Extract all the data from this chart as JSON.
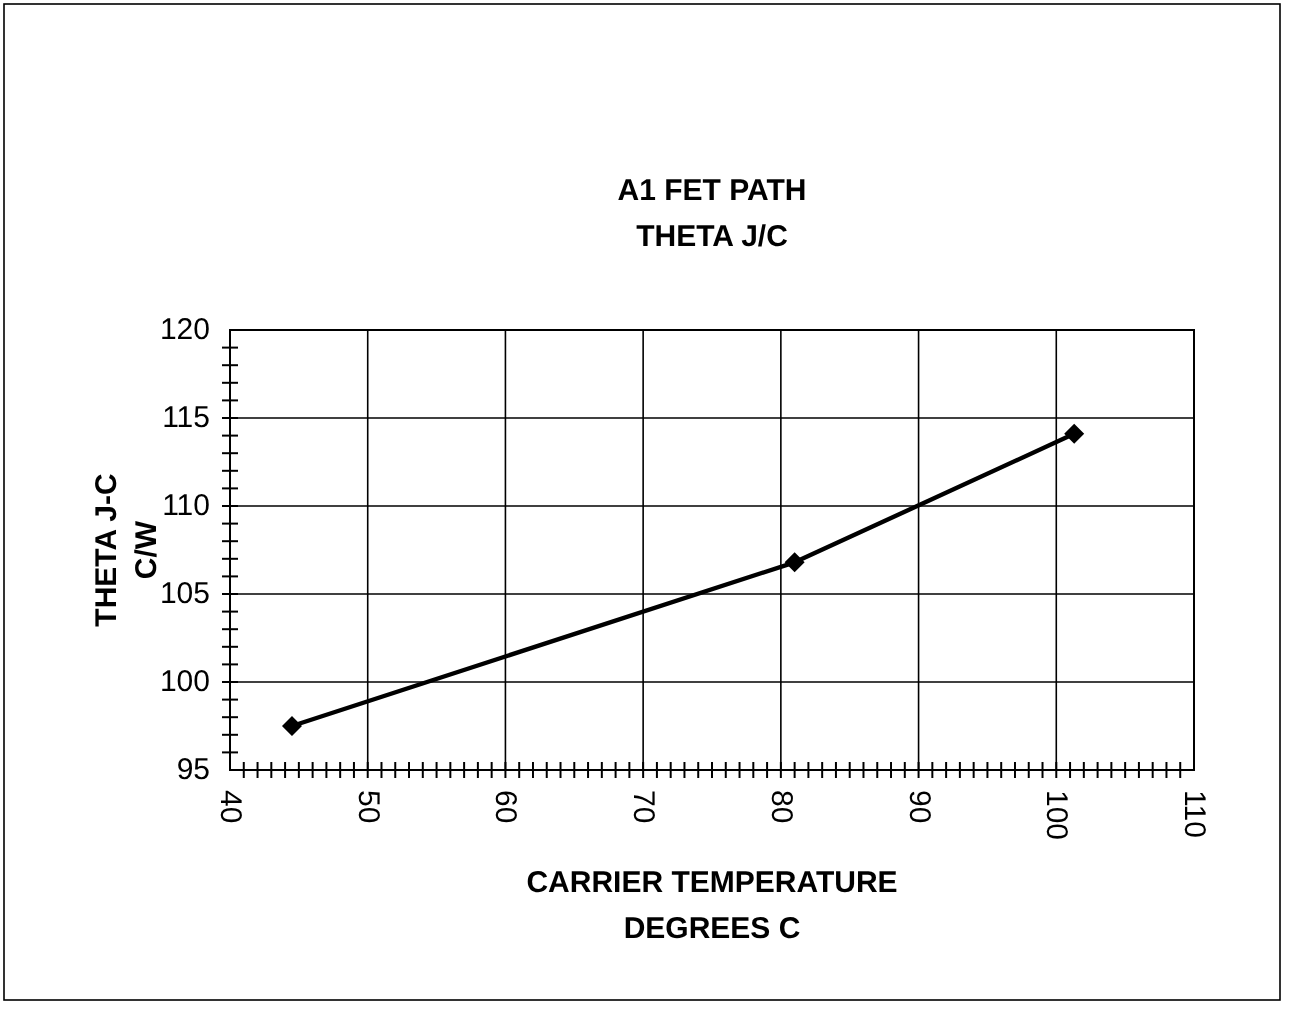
{
  "chart_data": {
    "type": "line",
    "title": "A1 FET PATH\nTHETA J/C",
    "xlabel": "CARRIER TEMPERATURE\nDEGREES C",
    "ylabel": "THETA J-C\nC/W",
    "x": [
      44.5,
      81,
      101.3
    ],
    "series": [
      {
        "color": "#000000",
        "values": [
          97.5,
          106.8,
          114.1
        ]
      }
    ],
    "xlim": [
      40,
      110
    ],
    "ylim": [
      95,
      120
    ],
    "xticks": [
      40,
      {
        "value": 41,
        "label": null
      },
      {
        "value": 42,
        "label": null
      },
      {
        "value": 43,
        "label": null
      },
      {
        "value": 44,
        "label": null
      },
      {
        "value": 45,
        "label": null
      },
      {
        "value": 46,
        "label": null
      },
      {
        "value": 47,
        "label": null
      },
      {
        "value": 48,
        "label": null
      },
      {
        "value": 49,
        "label": null
      },
      50,
      {
        "value": 51,
        "label": null
      },
      {
        "value": 52,
        "label": null
      },
      {
        "value": 53,
        "label": null
      },
      {
        "value": 54,
        "label": null
      },
      {
        "value": 55,
        "label": null
      },
      {
        "value": 56,
        "label": null
      },
      {
        "value": 57,
        "label": null
      },
      {
        "value": 58,
        "label": null
      },
      {
        "value": 59,
        "label": null
      },
      60,
      {
        "value": 61,
        "label": null
      },
      {
        "value": 62,
        "label": null
      },
      {
        "value": 63,
        "label": null
      },
      {
        "value": 64,
        "label": null
      },
      {
        "value": 65,
        "label": null
      },
      {
        "value": 66,
        "label": null
      },
      {
        "value": 67,
        "label": null
      },
      {
        "value": 68,
        "label": null
      },
      {
        "value": 69,
        "label": null
      },
      70,
      {
        "value": 71,
        "label": null
      },
      {
        "value": 72,
        "label": null
      },
      {
        "value": 73,
        "label": null
      },
      {
        "value": 74,
        "label": null
      },
      {
        "value": 75,
        "label": null
      },
      {
        "value": 76,
        "label": null
      },
      {
        "value": 77,
        "label": null
      },
      {
        "value": 78,
        "label": null
      },
      {
        "value": 79,
        "label": null
      },
      80,
      {
        "value": 81,
        "label": null
      },
      {
        "value": 82,
        "label": null
      },
      {
        "value": 83,
        "label": null
      },
      {
        "value": 84,
        "label": null
      },
      {
        "value": 85,
        "label": null
      },
      {
        "value": 86,
        "label": null
      },
      {
        "value": 87,
        "label": null
      },
      {
        "value": 88,
        "label": null
      },
      {
        "value": 89,
        "label": null
      },
      90,
      {
        "value": 91,
        "label": null
      },
      {
        "value": 92,
        "label": null
      },
      {
        "value": 93,
        "label": null
      },
      {
        "value": 94,
        "label": null
      },
      {
        "value": 95,
        "label": null
      },
      {
        "value": 96,
        "label": null
      },
      {
        "value": 97,
        "label": null
      },
      {
        "value": 98,
        "label": null
      },
      {
        "value": 99,
        "label": null
      },
      100,
      {
        "value": 101,
        "label": null
      },
      {
        "value": 102,
        "label": null
      },
      {
        "value": 103,
        "label": null
      },
      {
        "value": 104,
        "label": null
      },
      {
        "value": 105,
        "label": null
      },
      {
        "value": 106,
        "label": null
      },
      {
        "value": 107,
        "label": null
      },
      {
        "value": 108,
        "label": null
      },
      {
        "value": 109,
        "label": null
      },
      110
    ],
    "yticks": [
      95,
      {
        "value": 96,
        "label": null
      },
      {
        "value": 97,
        "label": null
      },
      {
        "value": 98,
        "label": null
      },
      {
        "value": 99,
        "label": null
      },
      100,
      {
        "value": 101,
        "label": null
      },
      {
        "value": 102,
        "label": null
      },
      {
        "value": 103,
        "label": null
      },
      {
        "value": 104,
        "label": null
      },
      105,
      {
        "value": 106,
        "label": null
      },
      {
        "value": 107,
        "label": null
      },
      {
        "value": 108,
        "label": null
      },
      {
        "value": 109,
        "label": null
      },
      110,
      {
        "value": 111,
        "label": null
      },
      {
        "value": 112,
        "label": null
      },
      {
        "value": 113,
        "label": null
      },
      {
        "value": 114,
        "label": null
      },
      115,
      {
        "value": 116,
        "label": null
      },
      {
        "value": 117,
        "label": null
      },
      {
        "value": 118,
        "label": null
      },
      {
        "value": 119,
        "label": null
      },
      120
    ],
    "grid": true,
    "marker": "diamond",
    "line_style": "solid"
  }
}
